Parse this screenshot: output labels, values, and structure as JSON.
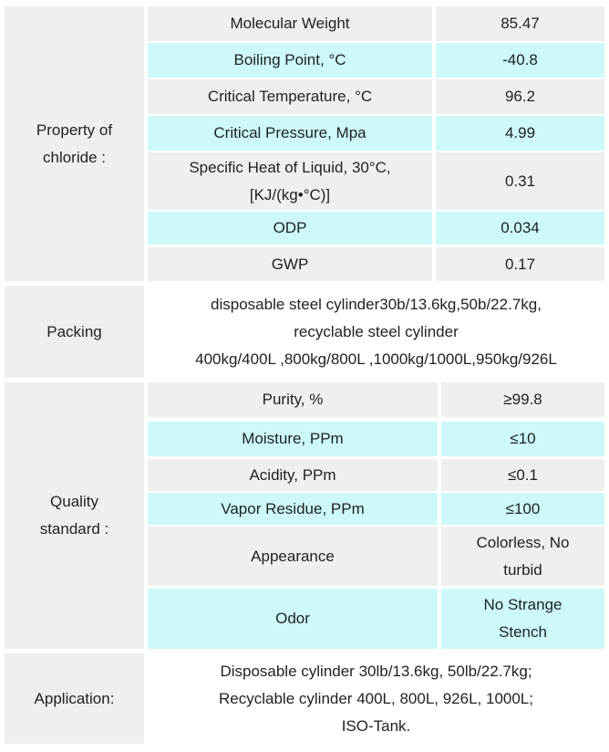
{
  "sections": [
    {
      "label": [
        "Property of",
        "chloride :"
      ],
      "rows": [
        [
          "Molecular Weight",
          "85.47"
        ],
        [
          "Boiling Point, °C",
          "-40.8"
        ],
        [
          "Critical Temperature, °C",
          "96.2"
        ],
        [
          "Critical Pressure, Mpa",
          "4.99"
        ],
        [
          "Specific Heat of Liquid, 30°C,",
          "[KJ/(kg•°C)]",
          "0.31"
        ],
        [
          "ODP",
          "0.034"
        ],
        [
          "GWP",
          "0.17"
        ]
      ]
    },
    {
      "label": [
        "Packing"
      ],
      "lines": [
        "disposable steel cylinder30b/13.6kg,50b/22.7kg,",
        "recyclable steel cylinder",
        "400kg/400L ,800kg/800L ,1000kg/1000L,950kg/926L"
      ]
    },
    {
      "label": [
        "Quality",
        "standard :"
      ],
      "rows": [
        [
          "Purity, %",
          "≥99.8"
        ],
        [
          "Moisture, PPm",
          "≤10"
        ],
        [
          "Acidity, PPm",
          "≤0.1"
        ],
        [
          "Vapor Residue, PPm",
          "≤100"
        ],
        [
          "Appearance",
          "Colorless, No",
          "turbid"
        ],
        [
          "Odor",
          "No Strange",
          "Stench"
        ]
      ]
    },
    {
      "label": [
        "Application:"
      ],
      "lines": [
        "Disposable cylinder 30lb/13.6kg, 50lb/22.7kg;",
        "Recyclable cylinder 400L, 800L, 926L, 1000L;",
        "ISO-Tank."
      ]
    }
  ]
}
